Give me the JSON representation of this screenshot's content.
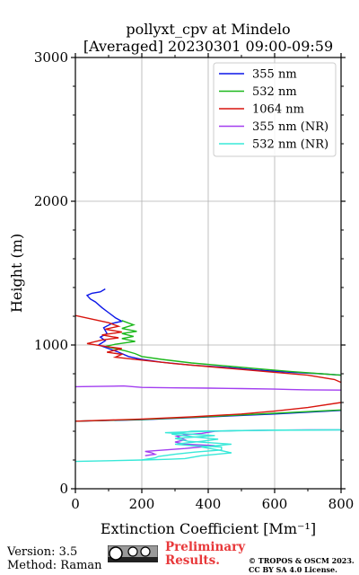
{
  "chart_data": {
    "type": "line",
    "title": "pollyxt_cpv at Mindelo",
    "subtitle": "[Averaged] 20230301 09:00-09:59",
    "xlabel": "Extinction Coefficient [Mm⁻¹]",
    "ylabel": "Height (m)",
    "xlim": [
      0,
      800
    ],
    "ylim": [
      0,
      3000
    ],
    "x_ticks": [
      "0",
      "200",
      "400",
      "600",
      "800"
    ],
    "y_ticks": [
      "0",
      "1000",
      "2000",
      "3000"
    ],
    "grid": true,
    "legend_position": "top-right",
    "series": [
      {
        "name": "355 nm",
        "color": "#0b16e8",
        "points": [
          [
            90,
            1390
          ],
          [
            75,
            1370
          ],
          [
            50,
            1360
          ],
          [
            35,
            1345
          ],
          [
            45,
            1320
          ],
          [
            60,
            1300
          ],
          [
            80,
            1260
          ],
          [
            100,
            1225
          ],
          [
            120,
            1190
          ],
          [
            140,
            1165
          ],
          [
            110,
            1150
          ],
          [
            85,
            1120
          ],
          [
            95,
            1080
          ],
          [
            75,
            1055
          ],
          [
            90,
            1030
          ],
          [
            70,
            1000
          ],
          [
            100,
            975
          ],
          [
            130,
            950
          ],
          [
            160,
            920
          ],
          [
            200,
            900
          ],
          [
            260,
            880
          ],
          [
            350,
            860
          ],
          [
            450,
            845
          ],
          [
            550,
            825
          ],
          [
            650,
            810
          ],
          [
            740,
            800
          ],
          [
            800,
            790
          ]
        ]
      },
      {
        "name": "532 nm",
        "color": "#1cb81c",
        "points": [
          [
            140,
            1170
          ],
          [
            175,
            1140
          ],
          [
            140,
            1115
          ],
          [
            185,
            1095
          ],
          [
            140,
            1080
          ],
          [
            175,
            1060
          ],
          [
            140,
            1045
          ],
          [
            180,
            1025
          ],
          [
            120,
            1005
          ],
          [
            90,
            990
          ],
          [
            150,
            960
          ],
          [
            180,
            940
          ],
          [
            200,
            920
          ],
          [
            260,
            900
          ],
          [
            350,
            875
          ],
          [
            450,
            855
          ],
          [
            550,
            835
          ],
          [
            650,
            815
          ],
          [
            740,
            800
          ],
          [
            800,
            790
          ]
        ]
      },
      {
        "name": "1064 nm",
        "color": "#d8150e",
        "points": [
          [
            0,
            1205
          ],
          [
            50,
            1180
          ],
          [
            100,
            1155
          ],
          [
            130,
            1130
          ],
          [
            90,
            1110
          ],
          [
            140,
            1090
          ],
          [
            80,
            1070
          ],
          [
            130,
            1050
          ],
          [
            80,
            1035
          ],
          [
            35,
            1010
          ],
          [
            90,
            990
          ],
          [
            140,
            975
          ],
          [
            95,
            950
          ],
          [
            140,
            935
          ],
          [
            120,
            915
          ],
          [
            200,
            895
          ],
          [
            300,
            870
          ],
          [
            400,
            850
          ],
          [
            500,
            830
          ],
          [
            600,
            810
          ],
          [
            700,
            790
          ],
          [
            780,
            760
          ],
          [
            800,
            740
          ]
        ]
      },
      {
        "name": "355 nm (NR)",
        "color": "#a23ef0",
        "points": [
          [
            0,
            710
          ],
          [
            70,
            712
          ],
          [
            145,
            715
          ],
          [
            200,
            705
          ],
          [
            300,
            702
          ],
          [
            400,
            700
          ],
          [
            500,
            697
          ],
          [
            600,
            693
          ],
          [
            650,
            690
          ],
          [
            700,
            688
          ],
          [
            800,
            686
          ]
        ]
      },
      {
        "name": "532 nm (NR)",
        "color": "#38e8d8",
        "points": [
          [
            0,
            190
          ],
          [
            200,
            200
          ],
          [
            280,
            205
          ],
          [
            330,
            210
          ],
          [
            380,
            230
          ],
          [
            470,
            250
          ],
          [
            430,
            270
          ],
          [
            380,
            290
          ],
          [
            470,
            310
          ],
          [
            340,
            330
          ],
          [
            300,
            350
          ],
          [
            420,
            370
          ],
          [
            270,
            390
          ],
          [
            400,
            400
          ],
          [
            600,
            408
          ],
          [
            800,
            410
          ]
        ]
      }
    ],
    "extra_lines": [
      {
        "color": "#0b16e8",
        "points": [
          [
            0,
            470
          ],
          [
            200,
            480
          ],
          [
            400,
            500
          ],
          [
            600,
            520
          ],
          [
            800,
            545
          ]
        ]
      },
      {
        "color": "#1cb81c",
        "points": [
          [
            0,
            470
          ],
          [
            200,
            482
          ],
          [
            400,
            502
          ],
          [
            600,
            525
          ],
          [
            800,
            548
          ]
        ]
      },
      {
        "color": "#d8150e",
        "points": [
          [
            0,
            470
          ],
          [
            200,
            485
          ],
          [
            350,
            500
          ],
          [
            500,
            520
          ],
          [
            600,
            540
          ],
          [
            700,
            565
          ],
          [
            800,
            600
          ]
        ]
      },
      {
        "color": "#a23ef0",
        "points": [
          [
            210,
            230
          ],
          [
            240,
            240
          ],
          [
            230,
            250
          ],
          [
            210,
            260
          ],
          [
            330,
            280
          ],
          [
            420,
            300
          ],
          [
            330,
            310
          ],
          [
            300,
            325
          ],
          [
            330,
            340
          ],
          [
            320,
            350
          ],
          [
            305,
            365
          ],
          [
            330,
            375
          ],
          [
            380,
            385
          ],
          [
            420,
            400
          ],
          [
            500,
            405
          ],
          [
            700,
            410
          ],
          [
            800,
            410
          ]
        ]
      },
      {
        "color": "#38e8d8",
        "points": [
          [
            200,
            200
          ],
          [
            240,
            215
          ],
          [
            250,
            225
          ],
          [
            300,
            240
          ],
          [
            360,
            255
          ],
          [
            440,
            270
          ],
          [
            440,
            290
          ],
          [
            350,
            300
          ],
          [
            300,
            310
          ],
          [
            380,
            330
          ],
          [
            430,
            345
          ],
          [
            360,
            360
          ],
          [
            290,
            380
          ],
          [
            350,
            400
          ],
          [
            500,
            405
          ],
          [
            800,
            410
          ]
        ]
      }
    ]
  },
  "footer": {
    "version": "Version: 3.5",
    "method": "Method: Raman",
    "prelim_line1": "Preliminary",
    "prelim_line2": "Results.",
    "copyright_line1": "© TROPOS & OSCM 2023.",
    "copyright_line2": "CC BY SA 4.0 License."
  }
}
